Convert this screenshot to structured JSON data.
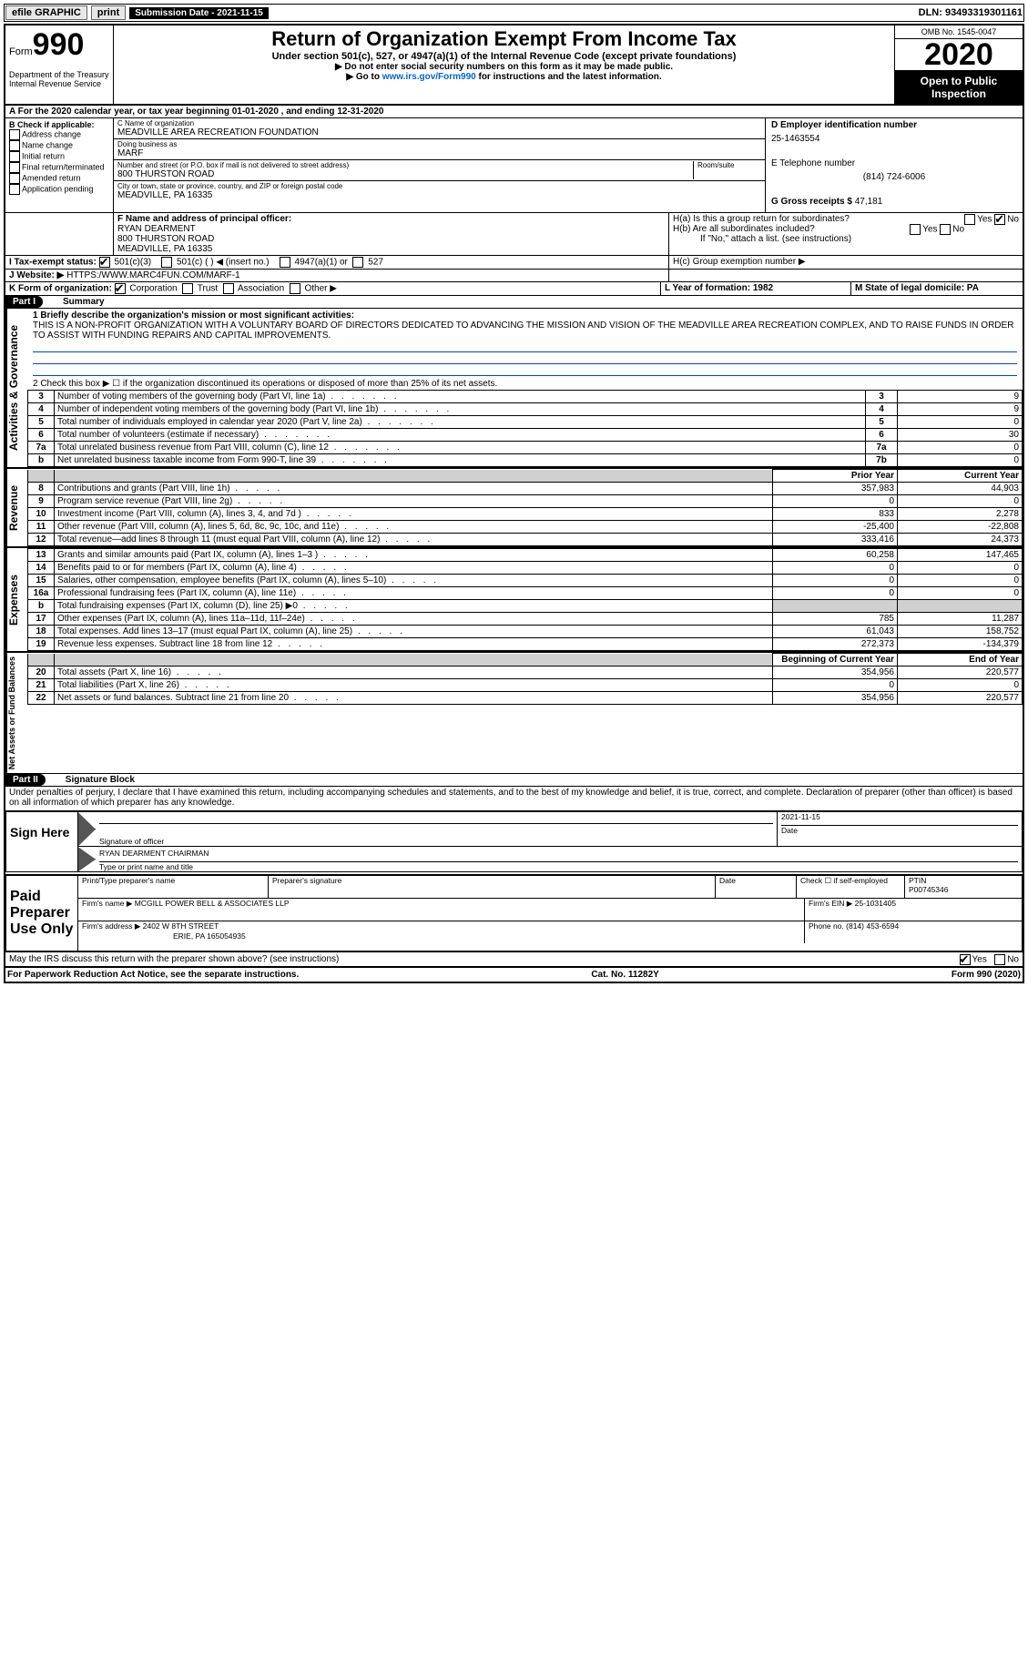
{
  "topbar": {
    "efile": "efile GRAPHIC",
    "print": "print",
    "submission_label": "Submission Date - 2021-11-15",
    "dln": "DLN: 93493319301161"
  },
  "header": {
    "form_prefix": "Form",
    "form_number": "990",
    "title": "Return of Organization Exempt From Income Tax",
    "subtitle": "Under section 501(c), 527, or 4947(a)(1) of the Internal Revenue Code (except private foundations)",
    "note1": "▶ Do not enter social security numbers on this form as it may be made public.",
    "note2_pre": "▶ Go to ",
    "note2_link": "www.irs.gov/Form990",
    "note2_post": " for instructions and the latest information.",
    "dept": "Department of the Treasury\nInternal Revenue Service",
    "omb": "OMB No. 1545-0047",
    "year": "2020",
    "open": "Open to Public Inspection"
  },
  "period": {
    "line_a": "A For the 2020 calendar year, or tax year beginning 01-01-2020   , and ending 12-31-2020"
  },
  "checkboxes": {
    "header": "B Check if applicable:",
    "items": [
      "Address change",
      "Name change",
      "Initial return",
      "Final return/terminated",
      "Amended return",
      "Application pending"
    ]
  },
  "entity": {
    "c_label": "C Name of organization",
    "c_val": "MEADVILLE AREA RECREATION FOUNDATION",
    "dba_label": "Doing business as",
    "dba_val": "MARF",
    "street_label": "Number and street (or P.O. box if mail is not delivered to street address)",
    "street_val": "800 THURSTON ROAD",
    "room_label": "Room/suite",
    "city_label": "City or town, state or province, country, and ZIP or foreign postal code",
    "city_val": "MEADVILLE, PA  16335",
    "d_label": "D Employer identification number",
    "d_val": "25-1463554",
    "e_label": "E Telephone number",
    "e_val": "(814) 724-6006",
    "g_label": "G Gross receipts $",
    "g_val": "47,181"
  },
  "officer": {
    "f_label": "F  Name and address of principal officer:",
    "name": "RYAN DEARMENT",
    "addr1": "800 THURSTON ROAD",
    "addr2": "MEADVILLE, PA  16335"
  },
  "h": {
    "ha": "H(a)  Is this a group return for subordinates?",
    "hb": "H(b)  Are all subordinates included?",
    "hb_note": "If \"No,\" attach a list. (see instructions)",
    "hc": "H(c)  Group exemption number ▶",
    "yes": "Yes",
    "no": "No"
  },
  "lines": {
    "i": "I  Tax-exempt status:",
    "i_501c3": "501(c)(3)",
    "i_501c": "501(c) (  ) ◀ (insert no.)",
    "i_4947": "4947(a)(1) or",
    "i_527": "527",
    "j": "J  Website: ▶",
    "j_val": "HTTPS:/WWW.MARC4FUN.COM/MARF-1",
    "k": "K Form of organization:",
    "k_corp": "Corporation",
    "k_trust": "Trust",
    "k_assoc": "Association",
    "k_other": "Other ▶",
    "l": "L Year of formation: 1982",
    "m": "M State of legal domicile: PA"
  },
  "part1": {
    "header": "Part I",
    "title": "Summary",
    "line1_label": "1  Briefly describe the organization's mission or most significant activities:",
    "mission": "THIS IS A NON-PROFIT ORGANIZATION WITH A VOLUNTARY BOARD OF DIRECTORS DEDICATED TO ADVANCING THE MISSION AND VISION OF THE MEADVILLE AREA RECREATION COMPLEX, AND TO RAISE FUNDS IN ORDER TO ASSIST WITH FUNDING REPAIRS AND CAPITAL IMPROVEMENTS.",
    "line2": "2   Check this box ▶ ☐ if the organization discontinued its operations or disposed of more than 25% of its net assets.",
    "side_ag": "Activities & Governance",
    "side_rev": "Revenue",
    "side_exp": "Expenses",
    "side_net": "Net Assets or Fund Balances",
    "col_prior": "Prior Year",
    "col_current": "Current Year",
    "col_begin": "Beginning of Current Year",
    "col_end": "End of Year",
    "rows_ag": [
      {
        "n": "3",
        "d": "Number of voting members of the governing body (Part VI, line 1a)",
        "c": "3",
        "v": "9"
      },
      {
        "n": "4",
        "d": "Number of independent voting members of the governing body (Part VI, line 1b)",
        "c": "4",
        "v": "9"
      },
      {
        "n": "5",
        "d": "Total number of individuals employed in calendar year 2020 (Part V, line 2a)",
        "c": "5",
        "v": "0"
      },
      {
        "n": "6",
        "d": "Total number of volunteers (estimate if necessary)",
        "c": "6",
        "v": "30"
      },
      {
        "n": "7a",
        "d": "Total unrelated business revenue from Part VIII, column (C), line 12",
        "c": "7a",
        "v": "0"
      },
      {
        "n": "b",
        "d": "Net unrelated business taxable income from Form 990-T, line 39",
        "c": "7b",
        "v": "0"
      }
    ],
    "rows_rev": [
      {
        "n": "8",
        "d": "Contributions and grants (Part VIII, line 1h)",
        "p": "357,983",
        "c": "44,903"
      },
      {
        "n": "9",
        "d": "Program service revenue (Part VIII, line 2g)",
        "p": "0",
        "c": "0"
      },
      {
        "n": "10",
        "d": "Investment income (Part VIII, column (A), lines 3, 4, and 7d )",
        "p": "833",
        "c": "2,278"
      },
      {
        "n": "11",
        "d": "Other revenue (Part VIII, column (A), lines 5, 6d, 8c, 9c, 10c, and 11e)",
        "p": "-25,400",
        "c": "-22,808"
      },
      {
        "n": "12",
        "d": "Total revenue—add lines 8 through 11 (must equal Part VIII, column (A), line 12)",
        "p": "333,416",
        "c": "24,373"
      }
    ],
    "rows_exp": [
      {
        "n": "13",
        "d": "Grants and similar amounts paid (Part IX, column (A), lines 1–3 )",
        "p": "60,258",
        "c": "147,465"
      },
      {
        "n": "14",
        "d": "Benefits paid to or for members (Part IX, column (A), line 4)",
        "p": "0",
        "c": "0"
      },
      {
        "n": "15",
        "d": "Salaries, other compensation, employee benefits (Part IX, column (A), lines 5–10)",
        "p": "0",
        "c": "0"
      },
      {
        "n": "16a",
        "d": "Professional fundraising fees (Part IX, column (A), line 11e)",
        "p": "0",
        "c": "0"
      },
      {
        "n": "b",
        "d": "Total fundraising expenses (Part IX, column (D), line 25) ▶0",
        "p": "",
        "c": "",
        "gray": true
      },
      {
        "n": "17",
        "d": "Other expenses (Part IX, column (A), lines 11a–11d, 11f–24e)",
        "p": "785",
        "c": "11,287"
      },
      {
        "n": "18",
        "d": "Total expenses. Add lines 13–17 (must equal Part IX, column (A), line 25)",
        "p": "61,043",
        "c": "158,752"
      },
      {
        "n": "19",
        "d": "Revenue less expenses. Subtract line 18 from line 12",
        "p": "272,373",
        "c": "-134,379"
      }
    ],
    "rows_net": [
      {
        "n": "20",
        "d": "Total assets (Part X, line 16)",
        "p": "354,956",
        "c": "220,577"
      },
      {
        "n": "21",
        "d": "Total liabilities (Part X, line 26)",
        "p": "0",
        "c": "0"
      },
      {
        "n": "22",
        "d": "Net assets or fund balances. Subtract line 21 from line 20",
        "p": "354,956",
        "c": "220,577"
      }
    ]
  },
  "part2": {
    "header": "Part II",
    "title": "Signature Block",
    "declaration": "Under penalties of perjury, I declare that I have examined this return, including accompanying schedules and statements, and to the best of my knowledge and belief, it is true, correct, and complete. Declaration of preparer (other than officer) is based on all information of which preparer has any knowledge."
  },
  "sign": {
    "label": "Sign Here",
    "sig_officer": "Signature of officer",
    "date": "Date",
    "date_val": "2021-11-15",
    "typed": "RYAN DEARMENT CHAIRMAN",
    "typed_label": "Type or print name and title"
  },
  "preparer": {
    "label": "Paid Preparer Use Only",
    "name_label": "Print/Type preparer's name",
    "sig_label": "Preparer's signature",
    "date_label": "Date",
    "check_label": "Check ☐ if self-employed",
    "ptin_label": "PTIN",
    "ptin_val": "P00745346",
    "firm_name_label": "Firm's name   ▶",
    "firm_name": "MCGILL POWER BELL & ASSOCIATES LLP",
    "firm_ein_label": "Firm's EIN ▶",
    "firm_ein": "25-1031405",
    "firm_addr_label": "Firm's address ▶",
    "firm_addr1": "2402 W 8TH STREET",
    "firm_addr2": "ERIE, PA  165054935",
    "phone_label": "Phone no.",
    "phone": "(814) 453-6594",
    "discuss": "May the IRS discuss this return with the preparer shown above? (see instructions)",
    "yes": "Yes",
    "no": "No"
  },
  "footer": {
    "left": "For Paperwork Reduction Act Notice, see the separate instructions.",
    "mid": "Cat. No. 11282Y",
    "right_pre": "Form ",
    "right_form": "990",
    "right_post": " (2020)"
  },
  "colors": {
    "link": "#0066cc",
    "line": "#0044cc"
  }
}
